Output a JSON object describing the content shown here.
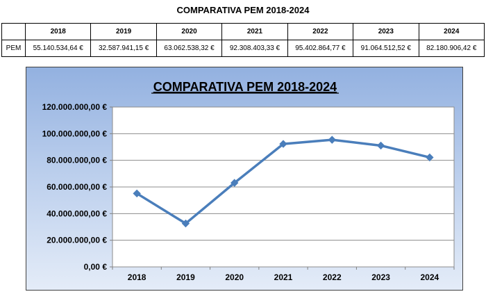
{
  "page": {
    "title": "COMPARATIVA PEM 2018-2024"
  },
  "table": {
    "row_label": "PEM",
    "years": [
      "2018",
      "2019",
      "2020",
      "2021",
      "2022",
      "2023",
      "2024"
    ],
    "values": [
      "55.140.534,64 €",
      "32.587.941,15 €",
      "63.062.538,32 €",
      "92.308.403,33 €",
      "95.402.864,77 €",
      "91.064.512,52 €",
      "82.180.906,42 €"
    ]
  },
  "chart_data": {
    "type": "line",
    "title": "COMPARATIVA PEM 2018-2024",
    "categories": [
      "2018",
      "2019",
      "2020",
      "2021",
      "2022",
      "2023",
      "2024"
    ],
    "series": [
      {
        "values": [
          55140534.64,
          32587941.15,
          63062538.32,
          92308403.33,
          95402864.77,
          91064512.52,
          82180906.42
        ]
      }
    ],
    "ylim": [
      0,
      120000000
    ],
    "yticks": [
      0,
      20000000,
      40000000,
      60000000,
      80000000,
      100000000,
      120000000
    ],
    "ytick_labels": [
      "0,00 €",
      "20.000.000,00 €",
      "40.000.000,00 €",
      "60.000.000,00 €",
      "80.000.000,00 €",
      "100.000.000,00 €",
      "120.000.000,00 €"
    ],
    "grid": true,
    "legend": "none",
    "colors": {
      "line": "#4a7ebb",
      "grid": "#8c8c8c",
      "plot_background": "#ffffff"
    }
  }
}
